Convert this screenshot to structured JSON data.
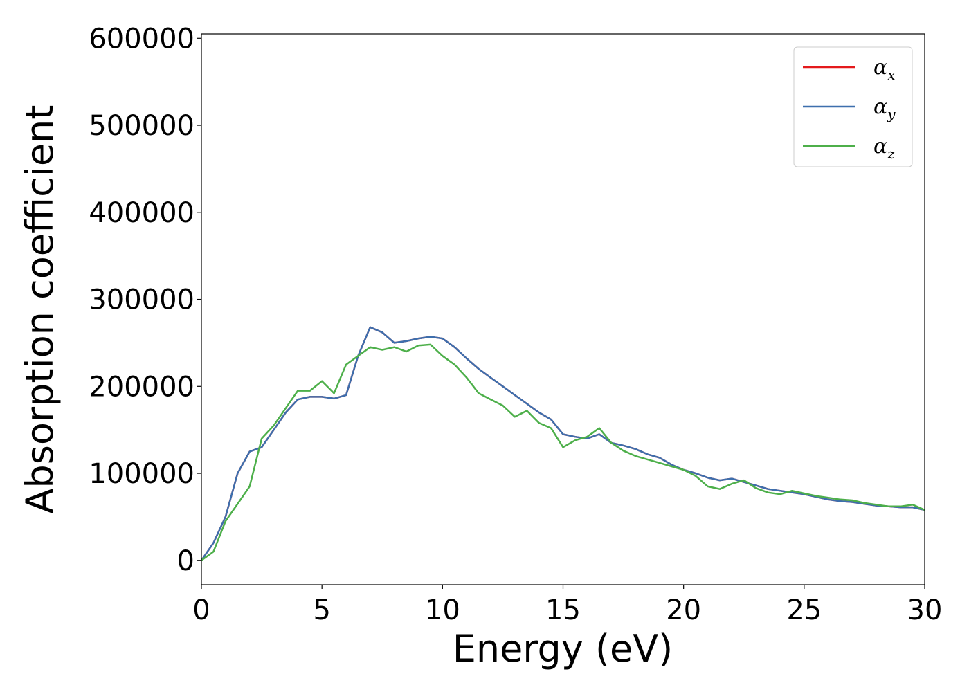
{
  "chart_data": {
    "type": "line",
    "title": "",
    "xlabel": "Energy (eV)",
    "ylabel": "Absorption coefficient",
    "xlim": [
      0,
      30
    ],
    "ylim": [
      -28000,
      605000
    ],
    "x_ticks": [
      0,
      5,
      10,
      15,
      20,
      25,
      30
    ],
    "y_ticks": [
      0,
      100000,
      200000,
      300000,
      400000,
      500000,
      600000
    ],
    "grid": false,
    "legend_position": "top-right",
    "series": [
      {
        "name": "α_x",
        "symbol": "α",
        "subscript": "x",
        "color": "#e41a1c",
        "x": [
          0,
          0.5,
          1,
          1.5,
          2,
          2.5,
          3,
          3.5,
          4,
          4.5,
          5,
          5.5,
          6,
          6.5,
          7,
          7.5,
          8,
          8.5,
          9,
          9.5,
          10,
          10.5,
          11,
          11.5,
          12,
          12.5,
          13,
          13.5,
          14,
          14.5,
          15,
          15.5,
          16,
          16.5,
          17,
          17.5,
          18,
          18.5,
          19,
          19.5,
          20,
          20.5,
          21,
          21.5,
          22,
          22.5,
          23,
          23.5,
          24,
          24.5,
          25,
          25.5,
          26,
          26.5,
          27,
          27.5,
          28,
          28.5,
          29,
          29.5,
          30
        ],
        "y": [
          0,
          20000,
          50000,
          100000,
          125000,
          130000,
          150000,
          170000,
          185000,
          188000,
          188000,
          186000,
          190000,
          235000,
          268000,
          262000,
          250000,
          252000,
          255000,
          257000,
          255000,
          245000,
          232000,
          220000,
          210000,
          200000,
          190000,
          180000,
          170000,
          162000,
          145000,
          142000,
          140000,
          145000,
          135000,
          132000,
          128000,
          122000,
          118000,
          110000,
          104000,
          100000,
          95000,
          92000,
          94000,
          90000,
          86000,
          82000,
          80000,
          78000,
          76000,
          73000,
          70000,
          68000,
          67000,
          65000,
          63000,
          62000,
          61000,
          61000,
          58000
        ]
      },
      {
        "name": "α_y",
        "symbol": "α",
        "subscript": "y",
        "color": "#3d6fad",
        "x": [
          0,
          0.5,
          1,
          1.5,
          2,
          2.5,
          3,
          3.5,
          4,
          4.5,
          5,
          5.5,
          6,
          6.5,
          7,
          7.5,
          8,
          8.5,
          9,
          9.5,
          10,
          10.5,
          11,
          11.5,
          12,
          12.5,
          13,
          13.5,
          14,
          14.5,
          15,
          15.5,
          16,
          16.5,
          17,
          17.5,
          18,
          18.5,
          19,
          19.5,
          20,
          20.5,
          21,
          21.5,
          22,
          22.5,
          23,
          23.5,
          24,
          24.5,
          25,
          25.5,
          26,
          26.5,
          27,
          27.5,
          28,
          28.5,
          29,
          29.5,
          30
        ],
        "y": [
          0,
          20000,
          50000,
          100000,
          125000,
          130000,
          150000,
          170000,
          185000,
          188000,
          188000,
          186000,
          190000,
          235000,
          268000,
          262000,
          250000,
          252000,
          255000,
          257000,
          255000,
          245000,
          232000,
          220000,
          210000,
          200000,
          190000,
          180000,
          170000,
          162000,
          145000,
          142000,
          140000,
          145000,
          135000,
          132000,
          128000,
          122000,
          118000,
          110000,
          104000,
          100000,
          95000,
          92000,
          94000,
          90000,
          86000,
          82000,
          80000,
          78000,
          76000,
          73000,
          70000,
          68000,
          67000,
          65000,
          63000,
          62000,
          61000,
          61000,
          58000
        ]
      },
      {
        "name": "α_z",
        "symbol": "α",
        "subscript": "z",
        "color": "#4daf4a",
        "x": [
          0,
          0.5,
          1,
          1.5,
          2,
          2.5,
          3,
          3.5,
          4,
          4.5,
          5,
          5.5,
          6,
          6.5,
          7,
          7.5,
          8,
          8.5,
          9,
          9.5,
          10,
          10.5,
          11,
          11.5,
          12,
          12.5,
          13,
          13.5,
          14,
          14.5,
          15,
          15.5,
          16,
          16.5,
          17,
          17.5,
          18,
          18.5,
          19,
          19.5,
          20,
          20.5,
          21,
          21.5,
          22,
          22.5,
          23,
          23.5,
          24,
          24.5,
          25,
          25.5,
          26,
          26.5,
          27,
          27.5,
          28,
          28.5,
          29,
          29.5,
          30
        ],
        "y": [
          0,
          10000,
          45000,
          65000,
          85000,
          140000,
          155000,
          175000,
          195000,
          195000,
          206000,
          192000,
          225000,
          235000,
          245000,
          242000,
          245000,
          240000,
          247000,
          248000,
          235000,
          225000,
          210000,
          192000,
          185000,
          178000,
          165000,
          172000,
          158000,
          152000,
          130000,
          138000,
          142000,
          152000,
          135000,
          126000,
          120000,
          116000,
          112000,
          108000,
          104000,
          97000,
          85000,
          82000,
          88000,
          92000,
          83000,
          78000,
          76000,
          80000,
          77000,
          74000,
          72000,
          70000,
          69000,
          66000,
          64000,
          62000,
          62000,
          64000,
          58000
        ]
      }
    ]
  }
}
